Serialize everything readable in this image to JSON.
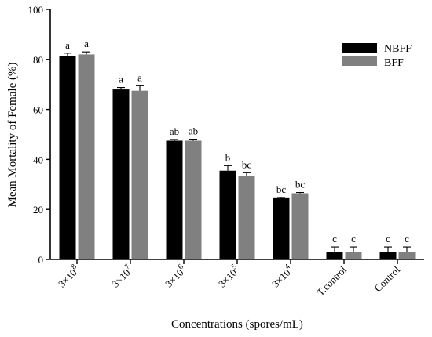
{
  "chart_data": {
    "type": "bar",
    "xlabel": "Concentrations (spores/mL)",
    "ylabel": "Mean Mortality of Female (%)",
    "ylim": [
      0,
      100
    ],
    "yticks": [
      0,
      20,
      40,
      60,
      80,
      100
    ],
    "categories": [
      {
        "base": "3×10",
        "exp": "8"
      },
      {
        "base": "3×10",
        "exp": "7"
      },
      {
        "base": "3×10",
        "exp": "6"
      },
      {
        "base": "3×10",
        "exp": "5"
      },
      {
        "base": "3×10",
        "exp": "4"
      },
      {
        "base": "T.control",
        "exp": ""
      },
      {
        "base": "Control",
        "exp": ""
      }
    ],
    "series": [
      {
        "name": "NBFF",
        "color": "#000000",
        "values": [
          81.5,
          68,
          47.5,
          35.5,
          24.5,
          3,
          3
        ],
        "errors": [
          1.0,
          0.8,
          0.5,
          2.0,
          0.3,
          2.0,
          2.0
        ],
        "labels": [
          "a",
          "a",
          "ab",
          "b",
          "bc",
          "c",
          "c"
        ]
      },
      {
        "name": "BFF",
        "color": "#808080",
        "values": [
          82,
          67.5,
          47.5,
          33.5,
          26.5,
          3,
          3
        ],
        "errors": [
          1.0,
          2.0,
          0.6,
          1.2,
          0.3,
          2.0,
          2.0
        ],
        "labels": [
          "a",
          "a",
          "ab",
          "bc",
          "bc",
          "c",
          "c"
        ]
      }
    ],
    "legend_position": "top-right",
    "grid": false
  }
}
